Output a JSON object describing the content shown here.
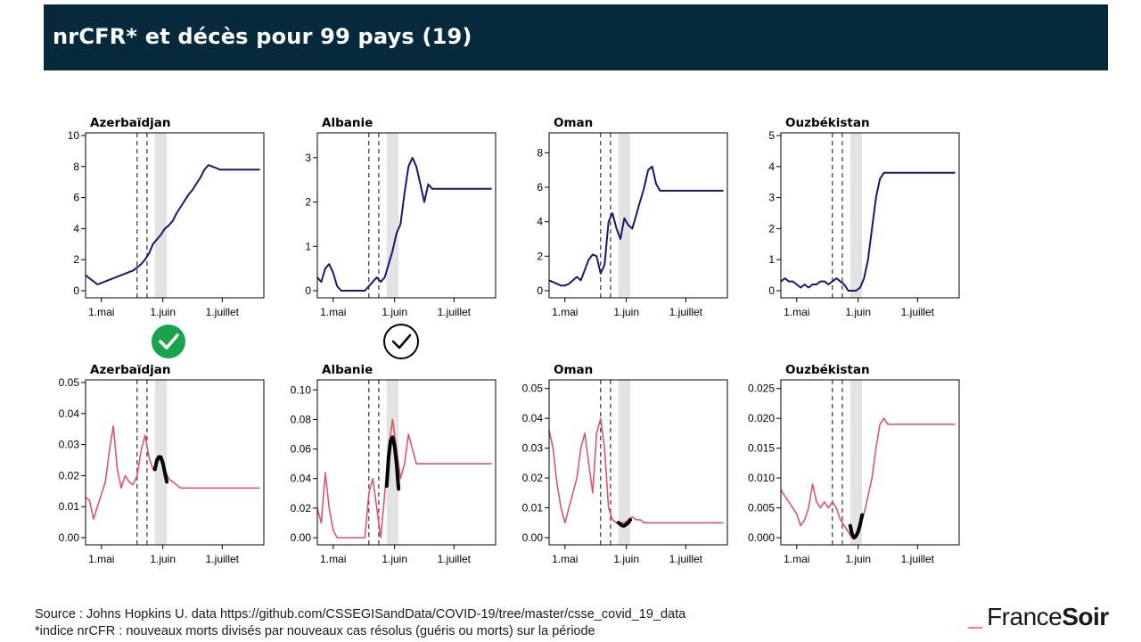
{
  "title": "nrCFR* et décès pour 99 pays (19)",
  "footer": {
    "source": "Source : Johns Hopkins U. data https://github.com/CSSEGISandData/COVID-19/tree/master/csse_covid_19_data",
    "note": "*indice nrCFR : nouveaux morts divisés par nouveaux cas résolus (guéris ou morts) sur la période"
  },
  "logo": {
    "part1": "France",
    "part2": "Soir"
  },
  "colors": {
    "top_line": "#141a6e",
    "bottom_line": "#d9576b",
    "fit_curve": "#000000",
    "shade": "#e3e3e3",
    "check_badge": "#1aa34a",
    "title_bg": "#062a3b"
  },
  "icons": [
    "check-circle-filled-icon",
    "check-circle-outline-icon"
  ],
  "chart_data": [
    {
      "type": "line",
      "title": "Azerbaïdjan",
      "row": "top",
      "x_ticks": [
        "1.mai",
        "1.juin",
        "1.juillet"
      ],
      "ylim": [
        0,
        10
      ],
      "y_ticks": [
        "0",
        "2",
        "4",
        "6",
        "8",
        "10"
      ],
      "xlim": [
        0,
        90
      ],
      "vlines": [
        26,
        31
      ],
      "shaded": [
        35,
        41
      ],
      "series": [
        {
          "x": [
            0,
            2,
            4,
            6,
            8,
            10,
            12,
            14,
            16,
            18,
            20,
            22,
            24,
            26,
            28,
            30,
            32,
            34,
            36,
            38,
            40,
            42,
            44,
            46,
            48,
            50,
            52,
            54,
            56,
            58,
            60,
            62,
            64,
            66,
            68,
            70,
            72,
            74,
            76,
            78,
            80,
            82,
            84,
            86,
            88
          ],
          "values": [
            1.0,
            0.8,
            0.6,
            0.4,
            0.5,
            0.6,
            0.7,
            0.8,
            0.9,
            1.0,
            1.1,
            1.2,
            1.3,
            1.5,
            1.7,
            2.0,
            2.4,
            3.0,
            3.3,
            3.6,
            4.0,
            4.2,
            4.5,
            5.0,
            5.4,
            5.8,
            6.2,
            6.5,
            6.9,
            7.3,
            7.8,
            8.1,
            8.0,
            7.9,
            7.8,
            7.8,
            7.8,
            7.8,
            7.8,
            7.8,
            7.8,
            7.8,
            7.8,
            7.8,
            7.8
          ]
        }
      ],
      "check": "filled"
    },
    {
      "type": "line",
      "title": "Albanie",
      "row": "top",
      "x_ticks": [
        "1.mai",
        "1.juin",
        "1.juillet"
      ],
      "ylim": [
        0,
        3.5
      ],
      "y_ticks": [
        "0",
        "1",
        "2",
        "3"
      ],
      "xlim": [
        0,
        90
      ],
      "vlines": [
        26,
        31
      ],
      "shaded": [
        35,
        41
      ],
      "series": [
        {
          "x": [
            0,
            2,
            4,
            6,
            8,
            10,
            12,
            14,
            16,
            18,
            20,
            22,
            24,
            26,
            28,
            30,
            32,
            34,
            36,
            38,
            40,
            42,
            44,
            46,
            48,
            50,
            52,
            54,
            56,
            58,
            60,
            62,
            64,
            66,
            68,
            70,
            72,
            74,
            76,
            78,
            80,
            82,
            84,
            86,
            88
          ],
          "values": [
            0.3,
            0.2,
            0.5,
            0.6,
            0.4,
            0.1,
            0.0,
            0.0,
            0.0,
            0.0,
            0.0,
            0.0,
            0.0,
            0.1,
            0.2,
            0.3,
            0.2,
            0.3,
            0.6,
            0.9,
            1.3,
            1.5,
            2.2,
            2.8,
            3.0,
            2.8,
            2.4,
            2.0,
            2.4,
            2.3,
            2.3,
            2.3,
            2.3,
            2.3,
            2.3,
            2.3,
            2.3,
            2.3,
            2.3,
            2.3,
            2.3,
            2.3,
            2.3,
            2.3,
            2.3
          ]
        }
      ],
      "check": "outline"
    },
    {
      "type": "line",
      "title": "Oman",
      "row": "top",
      "x_ticks": [
        "1.mai",
        "1.juin",
        "1.juillet"
      ],
      "ylim": [
        0,
        9
      ],
      "y_ticks": [
        "0",
        "2",
        "4",
        "6",
        "8"
      ],
      "xlim": [
        0,
        90
      ],
      "vlines": [
        26,
        31
      ],
      "shaded": [
        35,
        41
      ],
      "series": [
        {
          "x": [
            0,
            2,
            4,
            6,
            8,
            10,
            12,
            14,
            16,
            18,
            20,
            22,
            24,
            26,
            28,
            30,
            32,
            34,
            36,
            38,
            40,
            42,
            44,
            46,
            48,
            50,
            52,
            54,
            56,
            58,
            60,
            62,
            64,
            66,
            68,
            70,
            72,
            74,
            76,
            78,
            80,
            82,
            84,
            86,
            88
          ],
          "values": [
            0.6,
            0.5,
            0.4,
            0.3,
            0.3,
            0.4,
            0.6,
            0.8,
            0.6,
            1.2,
            1.8,
            2.1,
            2.0,
            1.0,
            1.5,
            4.0,
            4.5,
            3.6,
            3.0,
            4.2,
            3.8,
            3.6,
            4.4,
            5.2,
            6.0,
            7.0,
            7.2,
            6.2,
            5.8,
            5.8,
            5.8,
            5.8,
            5.8,
            5.8,
            5.8,
            5.8,
            5.8,
            5.8,
            5.8,
            5.8,
            5.8,
            5.8,
            5.8,
            5.8,
            5.8
          ]
        }
      ]
    },
    {
      "type": "line",
      "title": "Ouzbékistan",
      "row": "top",
      "x_ticks": [
        "1.mai",
        "1.juin",
        "1.juillet"
      ],
      "ylim": [
        0,
        5
      ],
      "y_ticks": [
        "0",
        "1",
        "2",
        "3",
        "4",
        "5"
      ],
      "xlim": [
        0,
        90
      ],
      "vlines": [
        26,
        31
      ],
      "shaded": [
        35,
        41
      ],
      "series": [
        {
          "x": [
            0,
            2,
            4,
            6,
            8,
            10,
            12,
            14,
            16,
            18,
            20,
            22,
            24,
            26,
            28,
            30,
            32,
            34,
            36,
            38,
            40,
            42,
            44,
            46,
            48,
            50,
            52,
            54,
            56,
            58,
            60,
            62,
            64,
            66,
            68,
            70,
            72,
            74,
            76,
            78,
            80,
            82,
            84,
            86,
            88
          ],
          "values": [
            0.3,
            0.4,
            0.3,
            0.3,
            0.2,
            0.1,
            0.2,
            0.1,
            0.2,
            0.2,
            0.3,
            0.3,
            0.2,
            0.3,
            0.4,
            0.3,
            0.2,
            0.0,
            0.0,
            0.0,
            0.1,
            0.4,
            1.0,
            2.0,
            3.0,
            3.6,
            3.8,
            3.8,
            3.8,
            3.8,
            3.8,
            3.8,
            3.8,
            3.8,
            3.8,
            3.8,
            3.8,
            3.8,
            3.8,
            3.8,
            3.8,
            3.8,
            3.8,
            3.8,
            3.8
          ]
        }
      ]
    },
    {
      "type": "line",
      "title": "Azerbaïdjan",
      "row": "bottom",
      "x_ticks": [
        "1.mai",
        "1.juin",
        "1.juillet"
      ],
      "ylim": [
        0,
        0.05
      ],
      "y_ticks": [
        "0.00",
        "0.01",
        "0.02",
        "0.03",
        "0.04",
        "0.05"
      ],
      "xlim": [
        0,
        90
      ],
      "vlines": [
        26,
        31
      ],
      "shaded": [
        35,
        41
      ],
      "series": [
        {
          "x": [
            0,
            2,
            4,
            6,
            8,
            10,
            12,
            14,
            16,
            18,
            20,
            22,
            24,
            26,
            28,
            30,
            32,
            34,
            36,
            38,
            40,
            42,
            44,
            46,
            48,
            50,
            52,
            54,
            56,
            58,
            60,
            62,
            64,
            66,
            68,
            70,
            72,
            74,
            76,
            78,
            80,
            82,
            84,
            86,
            88
          ],
          "values": [
            0.013,
            0.012,
            0.006,
            0.01,
            0.014,
            0.018,
            0.028,
            0.036,
            0.022,
            0.016,
            0.02,
            0.018,
            0.017,
            0.02,
            0.028,
            0.033,
            0.026,
            0.022,
            0.024,
            0.026,
            0.022,
            0.019,
            0.018,
            0.017,
            0.016,
            0.016,
            0.016,
            0.016,
            0.016,
            0.016,
            0.016,
            0.016,
            0.016,
            0.016,
            0.016,
            0.016,
            0.016,
            0.016,
            0.016,
            0.016,
            0.016,
            0.016,
            0.016,
            0.016,
            0.016
          ]
        }
      ],
      "fit": {
        "x": [
          35,
          36,
          37,
          38,
          39,
          40,
          41
        ],
        "values": [
          0.022,
          0.025,
          0.026,
          0.026,
          0.024,
          0.021,
          0.018
        ]
      }
    },
    {
      "type": "line",
      "title": "Albanie",
      "row": "bottom",
      "x_ticks": [
        "1.mai",
        "1.juin",
        "1.juillet"
      ],
      "ylim": [
        0,
        0.105
      ],
      "y_ticks": [
        "0.00",
        "0.02",
        "0.04",
        "0.06",
        "0.08",
        "0.10"
      ],
      "xlim": [
        0,
        90
      ],
      "vlines": [
        26,
        31
      ],
      "shaded": [
        35,
        41
      ],
      "series": [
        {
          "x": [
            0,
            2,
            4,
            6,
            8,
            10,
            12,
            14,
            16,
            18,
            20,
            22,
            24,
            26,
            28,
            30,
            32,
            34,
            36,
            38,
            40,
            42,
            44,
            46,
            48,
            50,
            52,
            54,
            56,
            58,
            60,
            62,
            64,
            66,
            68,
            70,
            72,
            74,
            76,
            78,
            80,
            82,
            84,
            86,
            88
          ],
          "values": [
            0.02,
            0.01,
            0.044,
            0.02,
            0.005,
            0.0,
            0.0,
            0.0,
            0.0,
            0.0,
            0.0,
            0.0,
            0.0,
            0.03,
            0.04,
            0.02,
            0.0,
            0.03,
            0.06,
            0.08,
            0.06,
            0.04,
            0.05,
            0.07,
            0.06,
            0.05,
            0.05,
            0.05,
            0.05,
            0.05,
            0.05,
            0.05,
            0.05,
            0.05,
            0.05,
            0.05,
            0.05,
            0.05,
            0.05,
            0.05,
            0.05,
            0.05,
            0.05,
            0.05,
            0.05
          ]
        }
      ],
      "fit": {
        "x": [
          35,
          36,
          37,
          38,
          39,
          40,
          41
        ],
        "values": [
          0.035,
          0.055,
          0.066,
          0.068,
          0.062,
          0.05,
          0.033
        ]
      }
    },
    {
      "type": "line",
      "title": "Oman",
      "row": "bottom",
      "x_ticks": [
        "1.mai",
        "1.juin",
        "1.juillet"
      ],
      "ylim": [
        0,
        0.052
      ],
      "y_ticks": [
        "0.00",
        "0.01",
        "0.02",
        "0.03",
        "0.04",
        "0.05"
      ],
      "xlim": [
        0,
        90
      ],
      "vlines": [
        26,
        31
      ],
      "shaded": [
        35,
        41
      ],
      "series": [
        {
          "x": [
            0,
            2,
            4,
            6,
            8,
            10,
            12,
            14,
            16,
            18,
            20,
            22,
            24,
            26,
            28,
            30,
            32,
            34,
            36,
            38,
            40,
            42,
            44,
            46,
            48,
            50,
            52,
            54,
            56,
            58,
            60,
            62,
            64,
            66,
            68,
            70,
            72,
            74,
            76,
            78,
            80,
            82,
            84,
            86,
            88
          ],
          "values": [
            0.036,
            0.03,
            0.018,
            0.01,
            0.005,
            0.01,
            0.015,
            0.02,
            0.03,
            0.035,
            0.025,
            0.015,
            0.035,
            0.04,
            0.03,
            0.01,
            0.006,
            0.005,
            0.005,
            0.005,
            0.006,
            0.007,
            0.006,
            0.006,
            0.005,
            0.005,
            0.005,
            0.005,
            0.005,
            0.005,
            0.005,
            0.005,
            0.005,
            0.005,
            0.005,
            0.005,
            0.005,
            0.005,
            0.005,
            0.005,
            0.005,
            0.005,
            0.005,
            0.005,
            0.005
          ]
        }
      ],
      "fit": {
        "x": [
          35,
          36,
          37,
          38,
          39,
          40,
          41
        ],
        "values": [
          0.005,
          0.0045,
          0.004,
          0.004,
          0.0045,
          0.005,
          0.006
        ]
      }
    },
    {
      "type": "line",
      "title": "Ouzbékistan",
      "row": "bottom",
      "x_ticks": [
        "1.mai",
        "1.juin",
        "1.juillet"
      ],
      "ylim": [
        0,
        0.026
      ],
      "y_ticks": [
        "0.000",
        "0.005",
        "0.010",
        "0.015",
        "0.020",
        "0.025"
      ],
      "xlim": [
        0,
        90
      ],
      "vlines": [
        26,
        31
      ],
      "shaded": [
        35,
        41
      ],
      "series": [
        {
          "x": [
            0,
            2,
            4,
            6,
            8,
            10,
            12,
            14,
            16,
            18,
            20,
            22,
            24,
            26,
            28,
            30,
            32,
            34,
            36,
            38,
            40,
            42,
            44,
            46,
            48,
            50,
            52,
            54,
            56,
            58,
            60,
            62,
            64,
            66,
            68,
            70,
            72,
            74,
            76,
            78,
            80,
            82,
            84,
            86,
            88
          ],
          "values": [
            0.008,
            0.007,
            0.006,
            0.005,
            0.004,
            0.002,
            0.003,
            0.005,
            0.009,
            0.006,
            0.005,
            0.006,
            0.005,
            0.006,
            0.005,
            0.003,
            0.002,
            0.001,
            0.0,
            0.0,
            0.002,
            0.004,
            0.007,
            0.01,
            0.015,
            0.019,
            0.02,
            0.019,
            0.019,
            0.019,
            0.019,
            0.019,
            0.019,
            0.019,
            0.019,
            0.019,
            0.019,
            0.019,
            0.019,
            0.019,
            0.019,
            0.019,
            0.019,
            0.019,
            0.019
          ]
        }
      ],
      "fit": {
        "x": [
          35,
          36,
          37,
          38,
          39,
          40,
          41
        ],
        "values": [
          0.002,
          0.0005,
          0.0,
          0.0003,
          0.001,
          0.0022,
          0.0038
        ]
      }
    }
  ]
}
